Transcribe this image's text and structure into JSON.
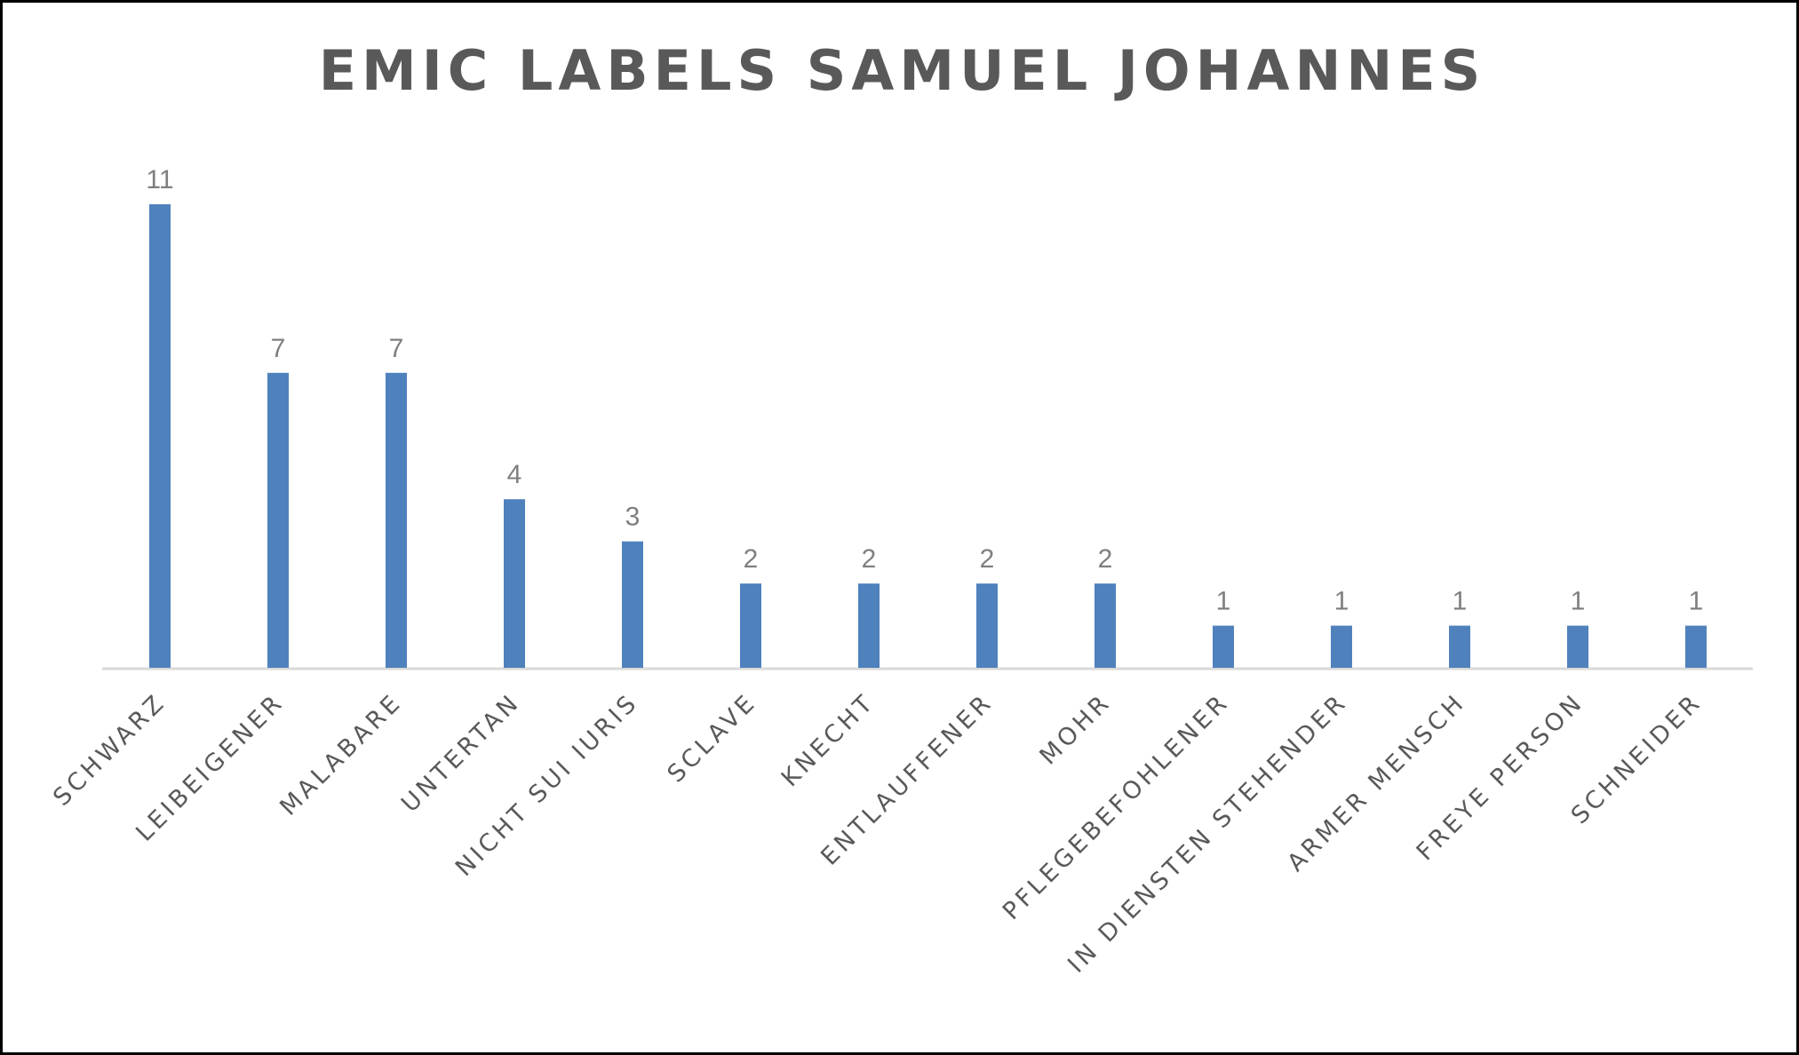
{
  "chart_data": {
    "type": "bar",
    "title": "EMIC LABELS SAMUEL JOHANNES",
    "xlabel": "",
    "ylabel": "",
    "categories": [
      "SCHWARZ",
      "LEIBEIGENER",
      "MALABARE",
      "UNTERTAN",
      "NICHT SUI IURIS",
      "SCLAVE",
      "KNECHT",
      "ENTLAUFFENER",
      "MOHR",
      "PFLEGEBEFOHLENER",
      "IN DIENSTEN STEHENDER",
      "ARMER MENSCH",
      "FREYE PERSON",
      "SCHNEIDER"
    ],
    "values": [
      11,
      7,
      7,
      4,
      3,
      2,
      2,
      2,
      2,
      1,
      1,
      1,
      1,
      1
    ],
    "ylim": [
      0,
      11
    ],
    "grid": false,
    "legend": "none",
    "data_labels": true,
    "colors": {
      "bar": "#4f81bd",
      "axis": "#d9d9d9",
      "title": "#595959",
      "data_label": "#7f7f7f",
      "tick_label": "#595959"
    }
  }
}
